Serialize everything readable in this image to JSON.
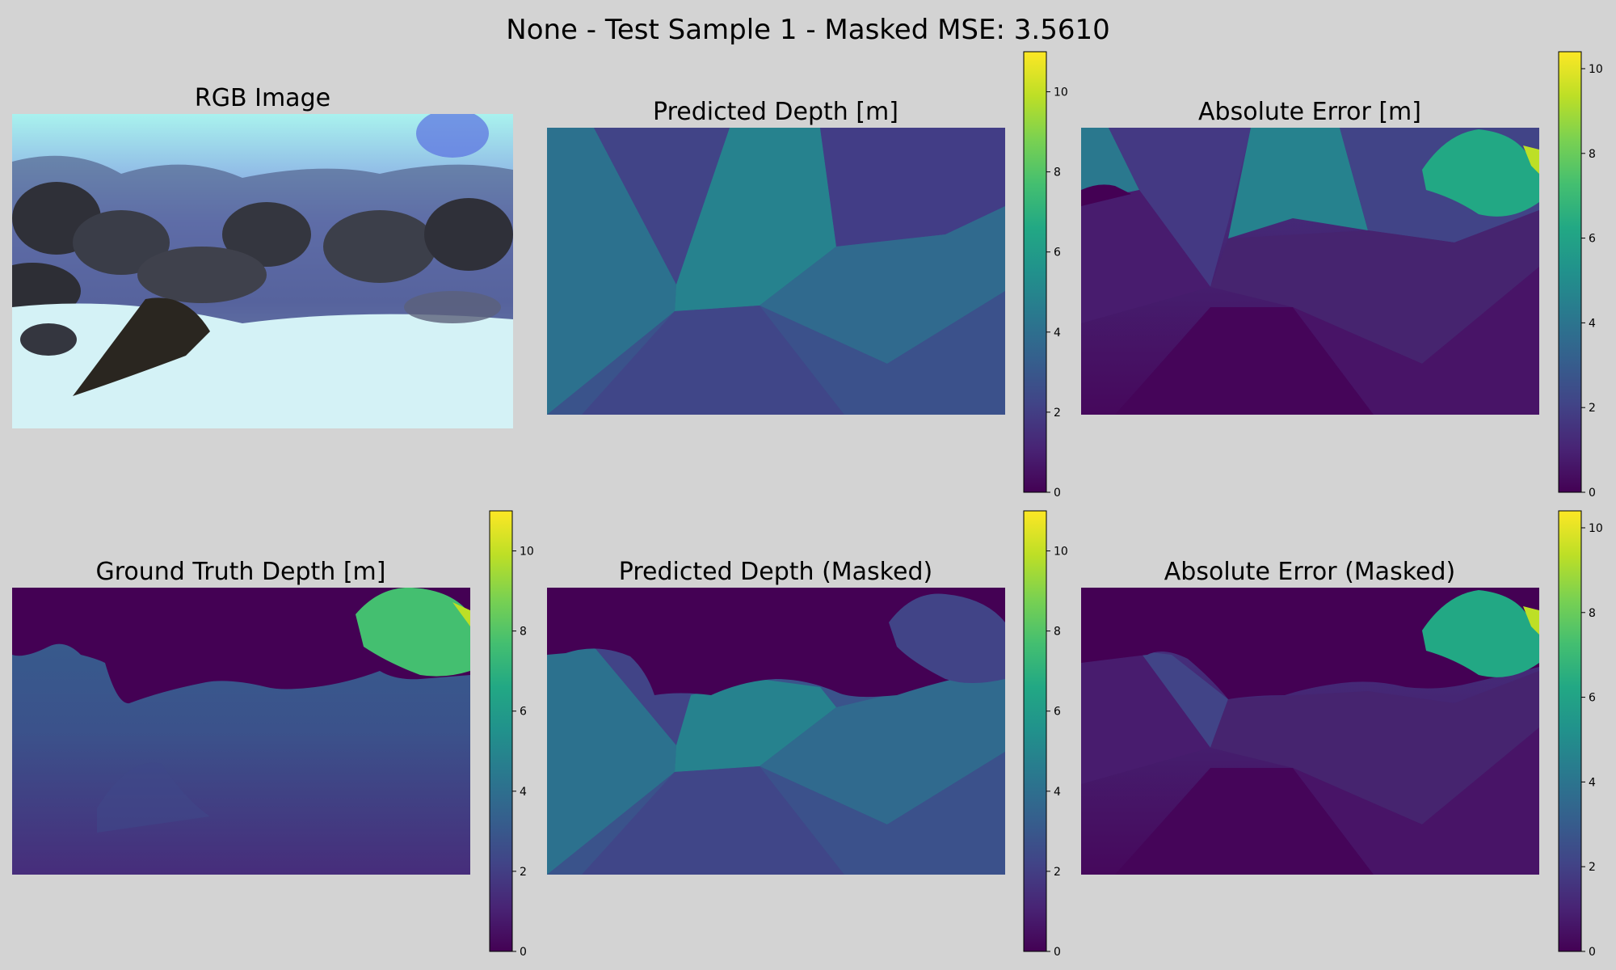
{
  "figure": {
    "title": "None - Test Sample 1 - Masked MSE: 3.5610",
    "background": "#d3d3d3"
  },
  "chart_data": [
    {
      "type": "image",
      "title": "RGB Image",
      "content": "underwater rocky seabed photograph"
    },
    {
      "type": "heatmap",
      "title": "Predicted Depth [m]",
      "colormap": "viridis",
      "colorbar": {
        "ticks": [
          0,
          2,
          4,
          6,
          8,
          10
        ],
        "range": [
          0,
          11
        ]
      }
    },
    {
      "type": "heatmap",
      "title": "Absolute Error [m]",
      "colormap": "viridis",
      "colorbar": {
        "ticks": [
          0,
          2,
          4,
          6,
          8,
          10
        ],
        "range": [
          0,
          10.4
        ]
      }
    },
    {
      "type": "heatmap",
      "title": "Ground Truth Depth [m]",
      "colormap": "viridis",
      "colorbar": {
        "ticks": [
          0,
          2,
          4,
          6,
          8,
          10
        ],
        "range": [
          0,
          11
        ]
      }
    },
    {
      "type": "heatmap",
      "title": "Predicted Depth (Masked)",
      "colormap": "viridis",
      "colorbar": {
        "ticks": [
          0,
          2,
          4,
          6,
          8,
          10
        ],
        "range": [
          0,
          11
        ]
      }
    },
    {
      "type": "heatmap",
      "title": "Absolute Error (Masked)",
      "colormap": "viridis",
      "colorbar": {
        "ticks": [
          0,
          2,
          4,
          6,
          8,
          10
        ],
        "range": [
          0,
          10.4
        ]
      }
    }
  ]
}
